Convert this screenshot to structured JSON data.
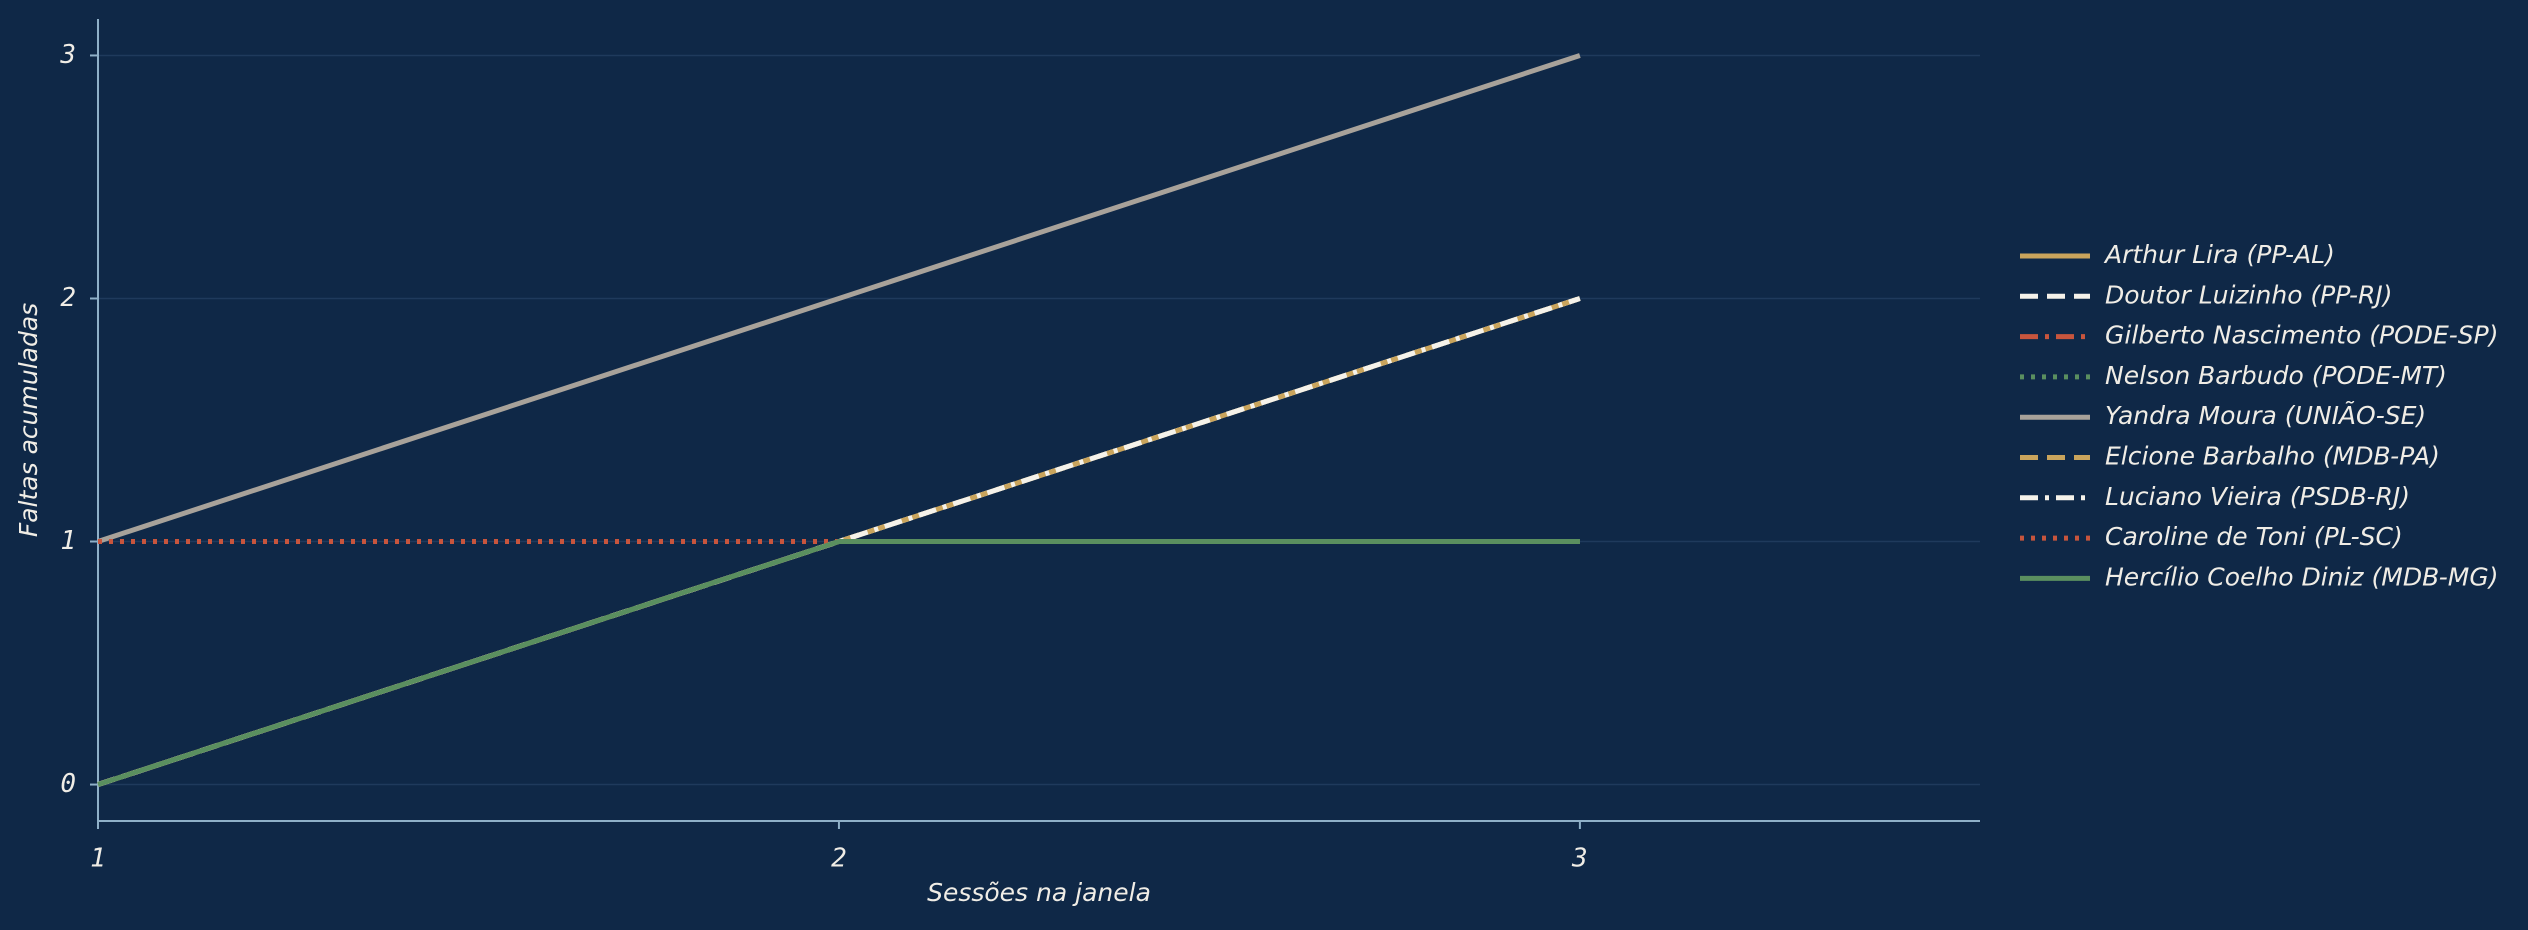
{
  "chart_data": {
    "type": "line",
    "x": [
      1,
      2,
      3
    ],
    "xlabel": "Sessões na janela",
    "ylabel": "Faltas acumuladas",
    "xlim": [
      1,
      3.54
    ],
    "xticks": [
      1,
      2,
      3
    ],
    "ylim": [
      -0.15,
      3.15
    ],
    "yticks": [
      0,
      1,
      2,
      3
    ],
    "grid": true,
    "legend": "right",
    "series": [
      {
        "name": "Arthur Lira (PP-AL)",
        "color": "#c9a45c",
        "dash": "solid",
        "values": [
          0,
          1,
          2
        ]
      },
      {
        "name": "Doutor Luizinho (PP-RJ)",
        "color": "#f5f2ea",
        "dash": "dashed",
        "values": [
          0,
          1,
          2
        ]
      },
      {
        "name": "Gilberto Nascimento (PODE-SP)",
        "color": "#c8553d",
        "dash": "dashdot",
        "values": [
          0,
          1,
          1
        ]
      },
      {
        "name": "Nelson Barbudo (PODE-MT)",
        "color": "#5a8f5f",
        "dash": "dotted",
        "values": [
          0,
          1,
          1
        ]
      },
      {
        "name": "Yandra Moura (UNIÃO-SE)",
        "color": "#a8a29a",
        "dash": "solid",
        "values": [
          1,
          2,
          3
        ]
      },
      {
        "name": "Elcione Barbalho (MDB-PA)",
        "color": "#c9a45c",
        "dash": "dashed",
        "values": [
          0,
          1,
          2
        ]
      },
      {
        "name": "Luciano Vieira (PSDB-RJ)",
        "color": "#f5f2ea",
        "dash": "dashdot",
        "values": [
          0,
          1,
          2
        ]
      },
      {
        "name": "Caroline de Toni (PL-SC)",
        "color": "#c8553d",
        "dash": "dotted",
        "values": [
          1,
          1,
          1
        ]
      },
      {
        "name": "Hercílio Coelho Diniz (MDB-MG)",
        "color": "#5a8f5f",
        "dash": "solid",
        "values": [
          0,
          1,
          1
        ]
      }
    ]
  }
}
